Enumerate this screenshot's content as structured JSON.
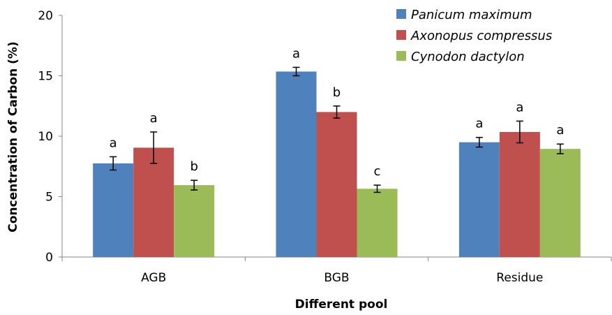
{
  "chart_data": {
    "type": "bar",
    "xlabel": "Different pool",
    "ylabel": "Concentration of Carbon (%)",
    "ylim": [
      0,
      20
    ],
    "yticks": [
      0,
      5,
      10,
      15,
      20
    ],
    "categories": [
      "AGB",
      "BGB",
      "Residue"
    ],
    "series": [
      {
        "name": "Panicum maximum",
        "color": "#4f81bd",
        "values": [
          7.75,
          15.35,
          9.5
        ],
        "errors": [
          0.55,
          0.35,
          0.4
        ],
        "labels": [
          "a",
          "a",
          "a"
        ]
      },
      {
        "name": "Axonopus compressus",
        "color": "#c0504d",
        "values": [
          9.05,
          12.0,
          10.35
        ],
        "errors": [
          1.3,
          0.5,
          0.9
        ],
        "labels": [
          "a",
          "b",
          "a"
        ]
      },
      {
        "name": "Cynodon dactylon",
        "color": "#9bbb59",
        "values": [
          5.95,
          5.65,
          8.95
        ],
        "errors": [
          0.4,
          0.3,
          0.4
        ],
        "labels": [
          "b",
          "c",
          "a"
        ]
      }
    ],
    "legend_position": "top-right",
    "grid": false
  }
}
